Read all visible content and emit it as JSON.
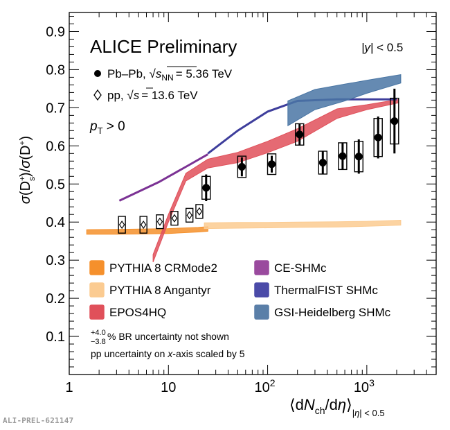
{
  "chart_data": {
    "type": "scatter",
    "title": "ALICE Preliminary",
    "rapidity_label": "|y| < 0.5",
    "ylabel": "σ(D_s^+)/σ(D^+)",
    "xlabel": "⟨dN_ch/dη⟩_|η| < 0.5",
    "xscale": "log",
    "xlim": [
      1,
      5000
    ],
    "ylim": [
      0,
      0.95
    ],
    "x_ticks": [
      "1",
      "10",
      "10^2",
      "10^3"
    ],
    "y_ticks": [
      "0.1",
      "0.2",
      "0.3",
      "0.4",
      "0.5",
      "0.6",
      "0.7",
      "0.8",
      "0.9"
    ],
    "pt_label": "p_T > 0",
    "series": [
      {
        "name": "Pb–Pb, √sNN = 5.36 TeV",
        "marker": "filled-circle",
        "x": [
          24,
          55,
          110,
          210,
          360,
          570,
          830,
          1300,
          1900
        ],
        "y": [
          0.49,
          0.545,
          0.552,
          0.63,
          0.556,
          0.573,
          0.572,
          0.622,
          0.665
        ],
        "stat_err": [
          0.035,
          0.025,
          0.022,
          0.028,
          0.03,
          0.035,
          0.045,
          0.055,
          0.085
        ],
        "syst_err": [
          0.03,
          0.028,
          0.027,
          0.028,
          0.03,
          0.035,
          0.04,
          0.05,
          0.06
        ]
      },
      {
        "name": "pp, √s = 13.6 TeV",
        "marker": "open-diamond",
        "x": [
          3.4,
          5.6,
          8.2,
          11.5,
          16.3,
          20.5
        ],
        "y": [
          0.393,
          0.393,
          0.401,
          0.41,
          0.418,
          0.428
        ],
        "syst_err": [
          0.022,
          0.022,
          0.018,
          0.018,
          0.018,
          0.018
        ]
      }
    ],
    "models": [
      {
        "name": "PYTHIA 8 CRMode2",
        "color": "#f5902c",
        "kind": "band",
        "x": [
          1.5,
          3,
          6,
          10,
          20,
          25
        ],
        "lo": [
          0.368,
          0.368,
          0.369,
          0.37,
          0.374,
          0.376
        ],
        "hi": [
          0.38,
          0.381,
          0.382,
          0.383,
          0.386,
          0.388
        ]
      },
      {
        "name": "PYTHIA 8 Angantyr",
        "color": "#fbcb91",
        "kind": "band",
        "x": [
          23,
          50,
          100,
          200,
          500,
          1000,
          2200
        ],
        "lo": [
          0.383,
          0.384,
          0.385,
          0.386,
          0.387,
          0.389,
          0.392
        ],
        "hi": [
          0.398,
          0.399,
          0.399,
          0.4,
          0.401,
          0.402,
          0.405
        ]
      },
      {
        "name": "EPOS4HQ",
        "color": "#e0505a",
        "kind": "band",
        "x": [
          7,
          10,
          15,
          25,
          50,
          100,
          200,
          500,
          1000,
          2100
        ],
        "lo": [
          0.295,
          0.4,
          0.508,
          0.542,
          0.556,
          0.582,
          0.612,
          0.672,
          0.695,
          0.713
        ],
        "hi": [
          0.315,
          0.42,
          0.528,
          0.565,
          0.583,
          0.612,
          0.645,
          0.697,
          0.708,
          0.722
        ]
      },
      {
        "name": "CE-SHMc",
        "color": "#7b3294",
        "kind": "line",
        "x": [
          3.2,
          8,
          15,
          25
        ],
        "y": [
          0.456,
          0.505,
          0.545,
          0.578
        ]
      },
      {
        "name": "ThermalFIST SHMc",
        "color": "#3e3e9c",
        "kind": "line",
        "x": [
          25,
          50,
          100,
          200,
          500,
          1000,
          2000
        ],
        "y": [
          0.58,
          0.64,
          0.69,
          0.718,
          0.722,
          0.722,
          0.722
        ]
      },
      {
        "name": "GSI-Heidelberg SHMc",
        "color": "#4a76a4",
        "kind": "band",
        "x": [
          160,
          300,
          600,
          1000,
          2200
        ],
        "lo": [
          0.653,
          0.695,
          0.718,
          0.738,
          0.765
        ],
        "hi": [
          0.718,
          0.748,
          0.762,
          0.772,
          0.787
        ]
      }
    ],
    "legend_left": [
      "PYTHIA 8 CRMode2",
      "PYTHIA 8 Angantyr",
      "EPOS4HQ"
    ],
    "legend_right": [
      "CE-SHMc",
      "ThermalFIST SHMc",
      "GSI-Heidelberg SHMc"
    ],
    "legend_colors": {
      "PYTHIA 8 CRMode2": "#f5902c",
      "PYTHIA 8 Angantyr": "#fbcb91",
      "EPOS4HQ": "#e0505a",
      "CE-SHMc": "#9a4a9e",
      "ThermalFIST SHMc": "#4b4ba8",
      "GSI-Heidelberg SHMc": "#5a7fa8"
    },
    "notes": {
      "br_sup": "+4.0",
      "br_sub": "−3.8",
      "br_text": "% BR uncertainty not shown",
      "pp_prefix": "pp uncertainty on ",
      "pp_var": "x",
      "pp_suffix": "-axis scaled by 5"
    },
    "legend_pbpb": {
      "label": "Pb–Pb, ",
      "energy": "= 5.36 TeV"
    },
    "legend_pp": {
      "label": "pp, ",
      "energy": "= 13.6 TeV"
    }
  },
  "footer": "ALI-PREL-621147"
}
